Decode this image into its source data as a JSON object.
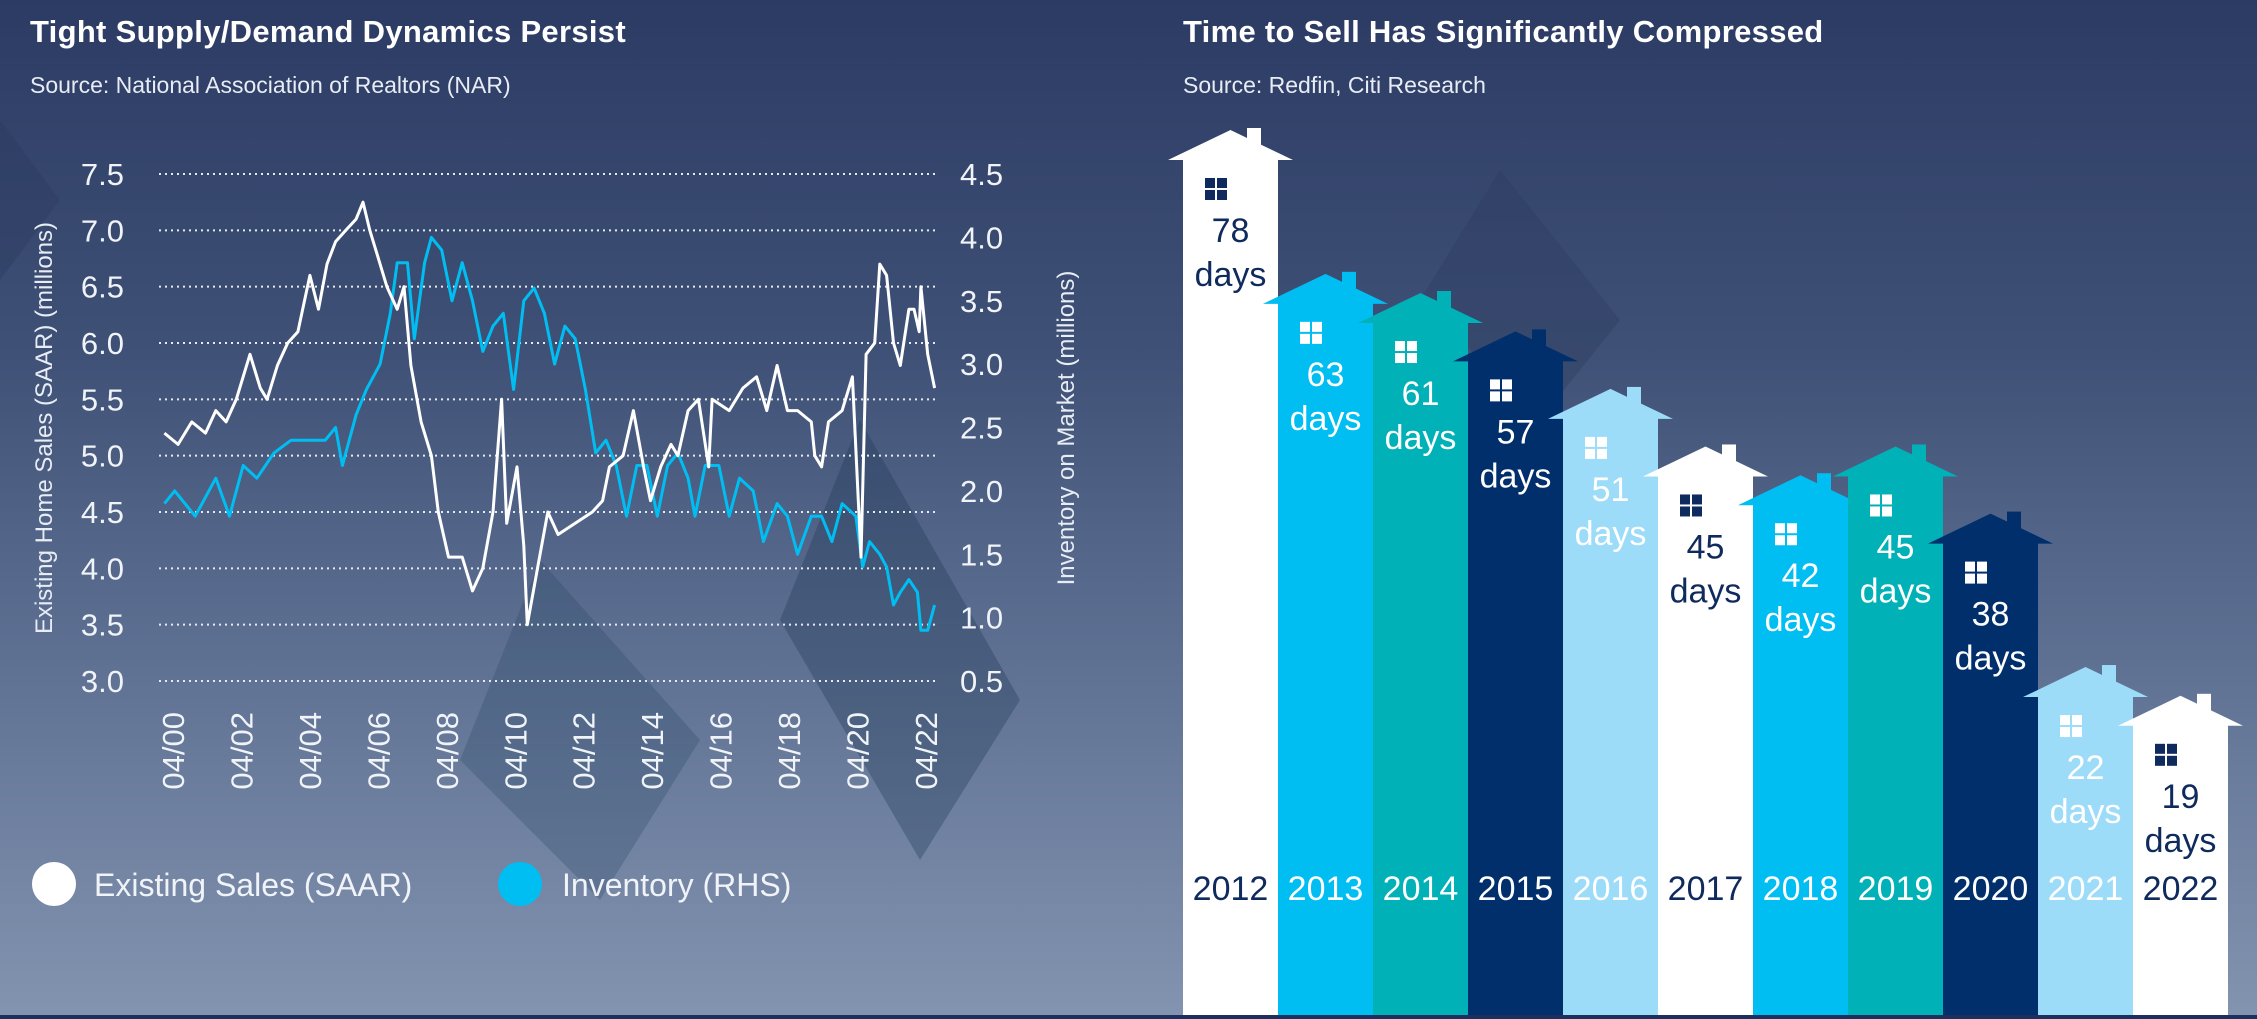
{
  "left_panel": {
    "title": "Tight Supply/Demand Dynamics Persist",
    "source": "Source: National Association of Realtors (NAR)"
  },
  "right_panel": {
    "title": "Time to Sell Has Significantly Compressed",
    "source": "Source: Redfin, Citi Research"
  },
  "colors": {
    "white": "#ffffff",
    "cyan": "#00bdf2",
    "teal": "#00b1b7",
    "navy": "#002f6c",
    "light": "#9ddcf9",
    "text_dark": "#0f2a5c"
  },
  "chart_data": [
    {
      "type": "line",
      "title": "Tight Supply/Demand Dynamics Persist",
      "ylabel": "Existing Home Sales (SAAR) (millions)",
      "y2label": "Inventory on Market (millions)",
      "ylim": [
        3.0,
        7.5
      ],
      "y2lim": [
        0.5,
        4.5
      ],
      "yticks": [
        "7.5",
        "7.0",
        "6.5",
        "6.0",
        "5.5",
        "5.0",
        "4.5",
        "4.0",
        "3.5",
        "3.0"
      ],
      "y2ticks": [
        "4.5",
        "4.0",
        "3.5",
        "3.0",
        "2.5",
        "2.0",
        "1.5",
        "1.0",
        "0.5"
      ],
      "xticks": [
        "04/00",
        "04/02",
        "04/04",
        "04/06",
        "04/08",
        "04/10",
        "04/12",
        "04/14",
        "04/16",
        "04/18",
        "04/20",
        "04/22"
      ],
      "xtick_years": [
        2000.25,
        2002.25,
        2004.25,
        2006.25,
        2008.25,
        2010.25,
        2012.25,
        2014.25,
        2016.25,
        2018.25,
        2020.25,
        2022.25
      ],
      "grid": "horizontal-dotted",
      "legend": [
        "Existing Sales (SAAR)",
        "Inventory (RHS)"
      ],
      "legend_position": "bottom-left",
      "series": [
        {
          "name": "Existing Sales (SAAR)",
          "axis": "left",
          "color": "#ffffff",
          "x": [
            2000.0,
            2000.4,
            2000.8,
            2001.2,
            2001.5,
            2001.8,
            2002.1,
            2002.5,
            2002.8,
            2003.0,
            2003.3,
            2003.6,
            2003.9,
            2004.25,
            2004.5,
            2004.75,
            2005.0,
            2005.3,
            2005.6,
            2005.8,
            2006.0,
            2006.2,
            2006.5,
            2006.8,
            2007.0,
            2007.2,
            2007.5,
            2007.8,
            2008.0,
            2008.3,
            2008.7,
            2009.0,
            2009.3,
            2009.6,
            2009.85,
            2010.0,
            2010.3,
            2010.5,
            2010.6,
            2010.9,
            2011.2,
            2011.5,
            2012.0,
            2012.5,
            2012.8,
            2013.0,
            2013.4,
            2013.7,
            2014.0,
            2014.2,
            2014.5,
            2014.8,
            2015.0,
            2015.3,
            2015.6,
            2015.9,
            2016.0,
            2016.5,
            2016.9,
            2017.3,
            2017.6,
            2017.9,
            2018.2,
            2018.5,
            2018.9,
            2019.0,
            2019.2,
            2019.4,
            2019.8,
            2020.1,
            2020.35,
            2020.5,
            2020.75,
            2020.9,
            2021.1,
            2021.3,
            2021.5,
            2021.75,
            2021.9,
            2022.05,
            2022.1,
            2022.3,
            2022.5
          ],
          "y": [
            5.2,
            5.1,
            5.3,
            5.2,
            5.4,
            5.3,
            5.5,
            5.9,
            5.6,
            5.5,
            5.8,
            6.0,
            6.1,
            6.6,
            6.3,
            6.7,
            6.9,
            7.0,
            7.1,
            7.25,
            7.0,
            6.8,
            6.5,
            6.3,
            6.5,
            5.8,
            5.3,
            5.0,
            4.5,
            4.1,
            4.1,
            3.8,
            4.0,
            4.5,
            5.5,
            4.4,
            4.9,
            4.2,
            3.5,
            4.0,
            4.5,
            4.3,
            4.4,
            4.5,
            4.6,
            4.9,
            5.0,
            5.4,
            4.9,
            4.6,
            4.9,
            5.1,
            5.0,
            5.4,
            5.5,
            4.9,
            5.5,
            5.4,
            5.6,
            5.7,
            5.4,
            5.8,
            5.4,
            5.4,
            5.3,
            5.0,
            4.9,
            5.3,
            5.4,
            5.7,
            4.1,
            5.9,
            6.0,
            6.7,
            6.6,
            6.0,
            5.8,
            6.3,
            6.3,
            6.1,
            6.5,
            5.9,
            5.6
          ]
        },
        {
          "name": "Inventory (RHS)",
          "axis": "right",
          "color": "#00bdf2",
          "x": [
            2000.0,
            2000.3,
            2000.9,
            2001.5,
            2001.9,
            2002.3,
            2002.7,
            2003.2,
            2003.7,
            2004.3,
            2004.7,
            2005.0,
            2005.2,
            2005.6,
            2005.9,
            2006.3,
            2006.6,
            2006.8,
            2007.1,
            2007.3,
            2007.6,
            2007.8,
            2008.1,
            2008.4,
            2008.7,
            2009.0,
            2009.3,
            2009.6,
            2009.9,
            2010.2,
            2010.5,
            2010.8,
            2011.1,
            2011.4,
            2011.7,
            2012.0,
            2012.3,
            2012.6,
            2012.9,
            2013.2,
            2013.5,
            2013.8,
            2014.1,
            2014.4,
            2014.7,
            2015.0,
            2015.3,
            2015.5,
            2015.8,
            2016.2,
            2016.5,
            2016.8,
            2017.2,
            2017.5,
            2017.9,
            2018.2,
            2018.5,
            2018.9,
            2019.2,
            2019.5,
            2019.8,
            2020.2,
            2020.4,
            2020.6,
            2020.9,
            2021.1,
            2021.3,
            2021.5,
            2021.75,
            2022.0,
            2022.1,
            2022.3,
            2022.5
          ],
          "y": [
            1.9,
            2.0,
            1.8,
            2.1,
            1.8,
            2.2,
            2.1,
            2.3,
            2.4,
            2.4,
            2.4,
            2.5,
            2.2,
            2.6,
            2.8,
            3.0,
            3.4,
            3.8,
            3.8,
            3.2,
            3.8,
            4.0,
            3.9,
            3.5,
            3.8,
            3.5,
            3.1,
            3.3,
            3.4,
            2.8,
            3.5,
            3.6,
            3.4,
            3.0,
            3.3,
            3.2,
            2.8,
            2.3,
            2.4,
            2.2,
            1.8,
            2.2,
            2.2,
            1.8,
            2.2,
            2.3,
            2.1,
            1.8,
            2.2,
            2.2,
            1.8,
            2.1,
            2.0,
            1.6,
            1.9,
            1.8,
            1.5,
            1.8,
            1.8,
            1.6,
            1.9,
            1.8,
            1.4,
            1.6,
            1.5,
            1.4,
            1.1,
            1.2,
            1.3,
            1.2,
            0.9,
            0.9,
            1.1
          ]
        }
      ]
    },
    {
      "type": "bar",
      "title": "Time to Sell Has Significantly Compressed",
      "categories": [
        "2012",
        "2013",
        "2014",
        "2015",
        "2016",
        "2017",
        "2018",
        "2019",
        "2020",
        "2021",
        "2022"
      ],
      "values": [
        78,
        63,
        61,
        57,
        51,
        45,
        42,
        45,
        38,
        22,
        19
      ],
      "unit": "days",
      "bar_colors": [
        "white",
        "cyan",
        "teal",
        "navy",
        "light",
        "white",
        "cyan",
        "teal",
        "navy",
        "light",
        "white"
      ]
    }
  ]
}
